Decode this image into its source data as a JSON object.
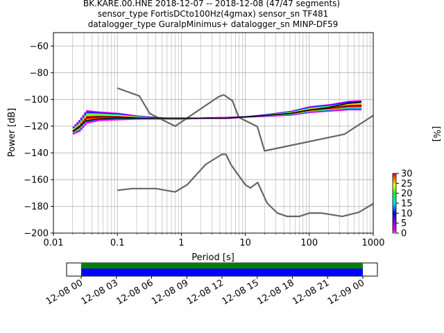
{
  "chart_data": {
    "type": "heatmap",
    "title_lines": [
      "BK.KARE.00.HNE   2018-12-07 -- 2018-12-08  (47/47 segments)",
      "sensor_type FortisDCto100Hz(4gmax) sensor_sn TF481",
      "datalogger_type GuralpMinimus+ datalogger_sn MINP-DF59"
    ],
    "xlabel": "Period [s]",
    "ylabel": "Power [dB]",
    "x_scale": "log",
    "xlim": [
      0.01,
      1000
    ],
    "ylim": [
      -200,
      -50
    ],
    "x_ticks": [
      0.01,
      0.1,
      1,
      10,
      100,
      1000
    ],
    "x_tick_labels": [
      "0.01",
      "0.1",
      "1",
      "10",
      "100",
      "1000"
    ],
    "y_ticks": [
      -200,
      -180,
      -160,
      -140,
      -120,
      -100,
      -80,
      -60
    ],
    "y_tick_labels": [
      "−200",
      "−180",
      "−160",
      "−140",
      "−120",
      "−100",
      "−80",
      "−60"
    ],
    "grid": true,
    "noise_models": [
      {
        "name": "high-noise",
        "color": "#666666",
        "x": [
          0.1,
          0.22,
          0.32,
          0.8,
          3.8,
          4.6,
          6.3,
          7.9,
          15.4,
          20,
          354.8,
          1000
        ],
        "y": [
          -91.5,
          -97.4,
          -110.5,
          -120,
          -98,
          -96.5,
          -101,
          -113.5,
          -120.3,
          -138.5,
          -126,
          -112
        ]
      },
      {
        "name": "low-noise",
        "color": "#666666",
        "x": [
          0.1,
          0.17,
          0.4,
          0.8,
          1.24,
          2.4,
          4.3,
          5,
          6,
          10,
          12,
          15.6,
          21.9,
          31.6,
          45,
          70,
          101,
          154,
          328,
          600,
          1000
        ],
        "y": [
          -168,
          -166.7,
          -166.7,
          -169.2,
          -163.7,
          -148.6,
          -141.1,
          -141.1,
          -149,
          -163.8,
          -166.2,
          -162.1,
          -177.5,
          -185,
          -187.5,
          -187.5,
          -185,
          -185,
          -187.5,
          -184.4,
          -178
        ]
      }
    ],
    "median_curve": {
      "color": "#000000",
      "x": [
        0.02,
        0.025,
        0.032,
        0.05,
        0.1,
        0.2,
        0.5,
        1,
        2,
        5,
        10,
        20,
        50,
        100,
        200,
        400,
        650
      ],
      "y": [
        -124,
        -121,
        -116,
        -114.5,
        -114,
        -114,
        -114,
        -114,
        -114,
        -114,
        -113,
        -112,
        -110.5,
        -108,
        -106,
        -103,
        -102
      ]
    },
    "psd_band": {
      "x": [
        0.02,
        0.025,
        0.032,
        0.05,
        0.1,
        0.2,
        0.5,
        1,
        2,
        5,
        10,
        20,
        50,
        100,
        200,
        400,
        650
      ],
      "upper": [
        -120,
        -115,
        -108,
        -109,
        -110,
        -112,
        -113.5,
        -114,
        -113.5,
        -113,
        -112.5,
        -111,
        -108.5,
        -105,
        -103.5,
        -101,
        -100.5
      ],
      "lower": [
        -126,
        -124,
        -118,
        -116,
        -115.5,
        -115,
        -115,
        -115,
        -114.5,
        -114.5,
        -113.5,
        -113,
        -112,
        -110,
        -109,
        -108,
        -108
      ]
    },
    "colorbar": {
      "label": "[%]",
      "min": 0,
      "max": 30,
      "ticks": [
        0,
        5,
        10,
        15,
        20,
        25,
        30
      ],
      "tick_labels": [
        "0",
        "5",
        "10",
        "15",
        "20",
        "25",
        "30"
      ]
    },
    "timeline": {
      "tick_labels": [
        "12-08 00",
        "12-08 03",
        "12-08 06",
        "12-08 09",
        "12-08 12",
        "12-08 15",
        "12-08 18",
        "12-08 21",
        "12-09 00"
      ],
      "coverage_start": "12-08 00",
      "coverage_end": "12-09 00",
      "upper_bar_color": "#008000",
      "lower_bar_color": "#0000ff"
    }
  }
}
